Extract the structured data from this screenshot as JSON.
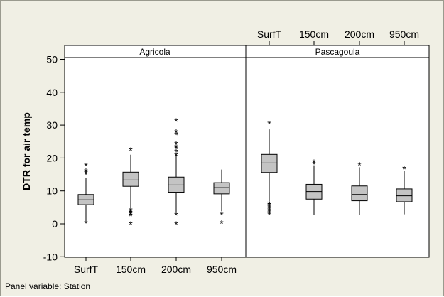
{
  "chart_data": {
    "type": "boxplot",
    "ylabel": "DTR for air temp",
    "xlabel": "",
    "ylim": [
      -10,
      53
    ],
    "y_ticks": [
      -10,
      0,
      10,
      20,
      30,
      40,
      50
    ],
    "categories": [
      "SurfT",
      "150cm",
      "200cm",
      "950cm"
    ],
    "panel_note": "Panel variable: Station",
    "grid": false,
    "panels": [
      {
        "name": "Agricola",
        "boxes": [
          {
            "category": "SurfT",
            "whisker_low": 0.5,
            "q1": 5.8,
            "median": 7.3,
            "q3": 8.9,
            "whisker_high": 14.0,
            "outliers": [
              0.5,
              15.3,
              15.8,
              16.3,
              18.0
            ]
          },
          {
            "category": "150cm",
            "whisker_low": 4.5,
            "q1": 11.4,
            "median": 13.3,
            "q3": 15.7,
            "whisker_high": 21.0,
            "outliers": [
              0.2,
              2.8,
              3.3,
              3.7,
              4.1,
              4.4,
              22.7
            ]
          },
          {
            "category": "200cm",
            "whisker_low": 3.3,
            "q1": 9.6,
            "median": 11.8,
            "q3": 14.2,
            "whisker_high": 21.0,
            "outliers": [
              0.2,
              3.0,
              21.2,
              22.2,
              23.2,
              23.7,
              24.6,
              27.4,
              28.2,
              31.5
            ]
          },
          {
            "category": "950cm",
            "whisker_low": 3.8,
            "q1": 9.1,
            "median": 11.0,
            "q3": 12.5,
            "whisker_high": 16.5,
            "outliers": [
              0.5,
              3.1
            ]
          }
        ]
      },
      {
        "name": "Pascagoula",
        "boxes": [
          {
            "category": "SurfT",
            "whisker_low": 7.0,
            "q1": 15.6,
            "median": 18.5,
            "q3": 21.1,
            "whisker_high": 28.7,
            "outliers": [
              3.1,
              3.6,
              4.0,
              4.4,
              4.9,
              5.3,
              5.7,
              6.1,
              6.5,
              30.8
            ]
          },
          {
            "category": "150cm",
            "whisker_low": 2.6,
            "q1": 7.5,
            "median": 9.8,
            "q3": 12.0,
            "whisker_high": 17.8,
            "outliers": [
              18.5,
              19.0
            ]
          },
          {
            "category": "200cm",
            "whisker_low": 2.6,
            "q1": 7.0,
            "median": 8.9,
            "q3": 11.5,
            "whisker_high": 17.2,
            "outliers": [
              18.2
            ]
          },
          {
            "category": "950cm",
            "whisker_low": 2.9,
            "q1": 6.7,
            "median": 8.5,
            "q3": 10.6,
            "whisker_high": 16.0,
            "outliers": [
              17.1
            ]
          }
        ]
      }
    ]
  },
  "colors": {
    "background": "#f0efe4",
    "plot_area": "#ffffff",
    "box_fill": "#c4c4c4",
    "line": "#000000"
  }
}
